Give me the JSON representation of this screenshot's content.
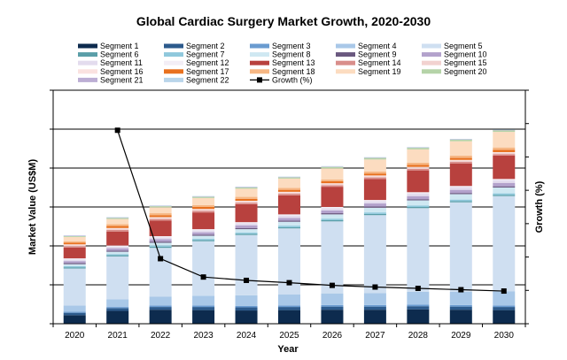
{
  "chart_data": {
    "type": "bar",
    "stacked": true,
    "title": "Global Cardiac Surgery Market Growth, 2020-2030",
    "xlabel": "Year",
    "ylabel": "Market Value (US$M)",
    "y2label": "Growth (%)",
    "categories": [
      "2020",
      "2021",
      "2022",
      "2023",
      "2024",
      "2025",
      "2026",
      "2027",
      "2028",
      "2029",
      "2030"
    ],
    "ylim": [
      0,
      60
    ],
    "y2lim": [
      0,
      70
    ],
    "grid": true,
    "legend_position": "top",
    "series": [
      {
        "name": "Segment 1",
        "color": "#0d2b4e",
        "values": [
          2.2,
          3.3,
          3.6,
          3.5,
          3.4,
          3.5,
          3.6,
          3.6,
          3.7,
          3.6,
          3.5
        ]
      },
      {
        "name": "Segment 2",
        "color": "#2c5a8c",
        "values": [
          0.6,
          0.7,
          0.7,
          0.8,
          0.8,
          0.8,
          0.8,
          0.8,
          0.8,
          0.8,
          0.8
        ]
      },
      {
        "name": "Segment 3",
        "color": "#6a9bd0",
        "values": [
          0.3,
          0.3,
          0.4,
          0.4,
          0.4,
          0.4,
          0.4,
          0.4,
          0.4,
          0.4,
          0.4
        ]
      },
      {
        "name": "Segment 4",
        "color": "#a9c8e8",
        "values": [
          1.6,
          2.0,
          2.3,
          2.5,
          2.7,
          2.8,
          3.0,
          3.1,
          3.3,
          3.4,
          3.6
        ]
      },
      {
        "name": "Segment 5",
        "color": "#cfdff1",
        "values": [
          9.5,
          11.0,
          12.5,
          14.0,
          15.5,
          17.0,
          18.5,
          20.0,
          21.5,
          23.0,
          24.5
        ]
      },
      {
        "name": "Segment 6",
        "color": "#5a9ea8",
        "values": [
          0.3,
          0.3,
          0.3,
          0.3,
          0.3,
          0.3,
          0.3,
          0.3,
          0.3,
          0.3,
          0.3
        ]
      },
      {
        "name": "Segment 7",
        "color": "#8fc8dc",
        "values": [
          0.3,
          0.3,
          0.3,
          0.3,
          0.3,
          0.4,
          0.4,
          0.4,
          0.4,
          0.4,
          0.4
        ]
      },
      {
        "name": "Segment 8",
        "color": "#cfe8f2",
        "values": [
          0.5,
          0.6,
          0.7,
          0.8,
          0.9,
          1.0,
          1.1,
          1.2,
          1.3,
          1.4,
          1.5
        ]
      },
      {
        "name": "Segment 9",
        "color": "#6a587f",
        "values": [
          0.3,
          0.3,
          0.3,
          0.3,
          0.3,
          0.3,
          0.3,
          0.3,
          0.3,
          0.3,
          0.3
        ]
      },
      {
        "name": "Segment 10",
        "color": "#b3a2cc",
        "values": [
          0.5,
          0.6,
          0.6,
          0.6,
          0.7,
          0.7,
          0.7,
          0.8,
          0.8,
          0.8,
          0.9
        ]
      },
      {
        "name": "Segment 11",
        "color": "#e3dcee",
        "values": [
          0.4,
          0.4,
          0.5,
          0.5,
          0.5,
          0.6,
          0.6,
          0.6,
          0.7,
          0.7,
          0.7
        ]
      },
      {
        "name": "Segment 12",
        "color": "#f3eef6",
        "values": [
          0.3,
          0.3,
          0.3,
          0.3,
          0.3,
          0.3,
          0.3,
          0.3,
          0.3,
          0.3,
          0.3
        ]
      },
      {
        "name": "Segment 13",
        "color": "#b8413e",
        "values": [
          2.8,
          3.6,
          4.0,
          4.3,
          4.6,
          4.9,
          5.2,
          5.4,
          5.6,
          5.8,
          6.0
        ]
      },
      {
        "name": "Segment 14",
        "color": "#d98e8b",
        "values": [
          0.3,
          0.4,
          0.4,
          0.4,
          0.4,
          0.4,
          0.4,
          0.4,
          0.4,
          0.4,
          0.4
        ]
      },
      {
        "name": "Segment 15",
        "color": "#f2d2d0",
        "values": [
          0.3,
          0.3,
          0.3,
          0.3,
          0.3,
          0.3,
          0.3,
          0.3,
          0.3,
          0.3,
          0.3
        ]
      },
      {
        "name": "Segment 16",
        "color": "#fae2e0",
        "values": [
          0.2,
          0.2,
          0.2,
          0.2,
          0.2,
          0.2,
          0.2,
          0.2,
          0.2,
          0.2,
          0.2
        ]
      },
      {
        "name": "Segment 17",
        "color": "#e8711f",
        "values": [
          0.4,
          0.5,
          0.5,
          0.5,
          0.5,
          0.5,
          0.5,
          0.5,
          0.5,
          0.5,
          0.6
        ]
      },
      {
        "name": "Segment 18",
        "color": "#f6b784",
        "values": [
          0.4,
          0.5,
          0.5,
          0.5,
          0.5,
          0.5,
          0.5,
          0.5,
          0.6,
          0.6,
          0.6
        ]
      },
      {
        "name": "Segment 19",
        "color": "#fcdcc0",
        "values": [
          1.1,
          1.3,
          1.5,
          1.8,
          2.1,
          2.4,
          2.8,
          3.1,
          3.4,
          3.7,
          4.0
        ]
      },
      {
        "name": "Segment 20",
        "color": "#b5d3a8",
        "values": [
          0.2,
          0.3,
          0.3,
          0.3,
          0.3,
          0.3,
          0.4,
          0.4,
          0.4,
          0.4,
          0.4
        ]
      },
      {
        "name": "Segment 21",
        "color": "#bcaed4",
        "values": [
          0.1,
          0.1,
          0.1,
          0.1,
          0.1,
          0.1,
          0.1,
          0.1,
          0.1,
          0.1,
          0.1
        ]
      },
      {
        "name": "Segment 22",
        "color": "#b9d5ea",
        "values": [
          0.1,
          0.1,
          0.1,
          0.1,
          0.1,
          0.1,
          0.1,
          0.1,
          0.1,
          0.1,
          0.1
        ]
      }
    ],
    "line_series": {
      "name": "Growth (%)",
      "axis": "secondary",
      "color": "#000000",
      "x": [
        "2021",
        "2022",
        "2023",
        "2024",
        "2025",
        "2026",
        "2027",
        "2028",
        "2029",
        "2030"
      ],
      "values": [
        58,
        19.5,
        14,
        13,
        12.3,
        11.5,
        11,
        10.6,
        10.2,
        9.8
      ]
    }
  }
}
